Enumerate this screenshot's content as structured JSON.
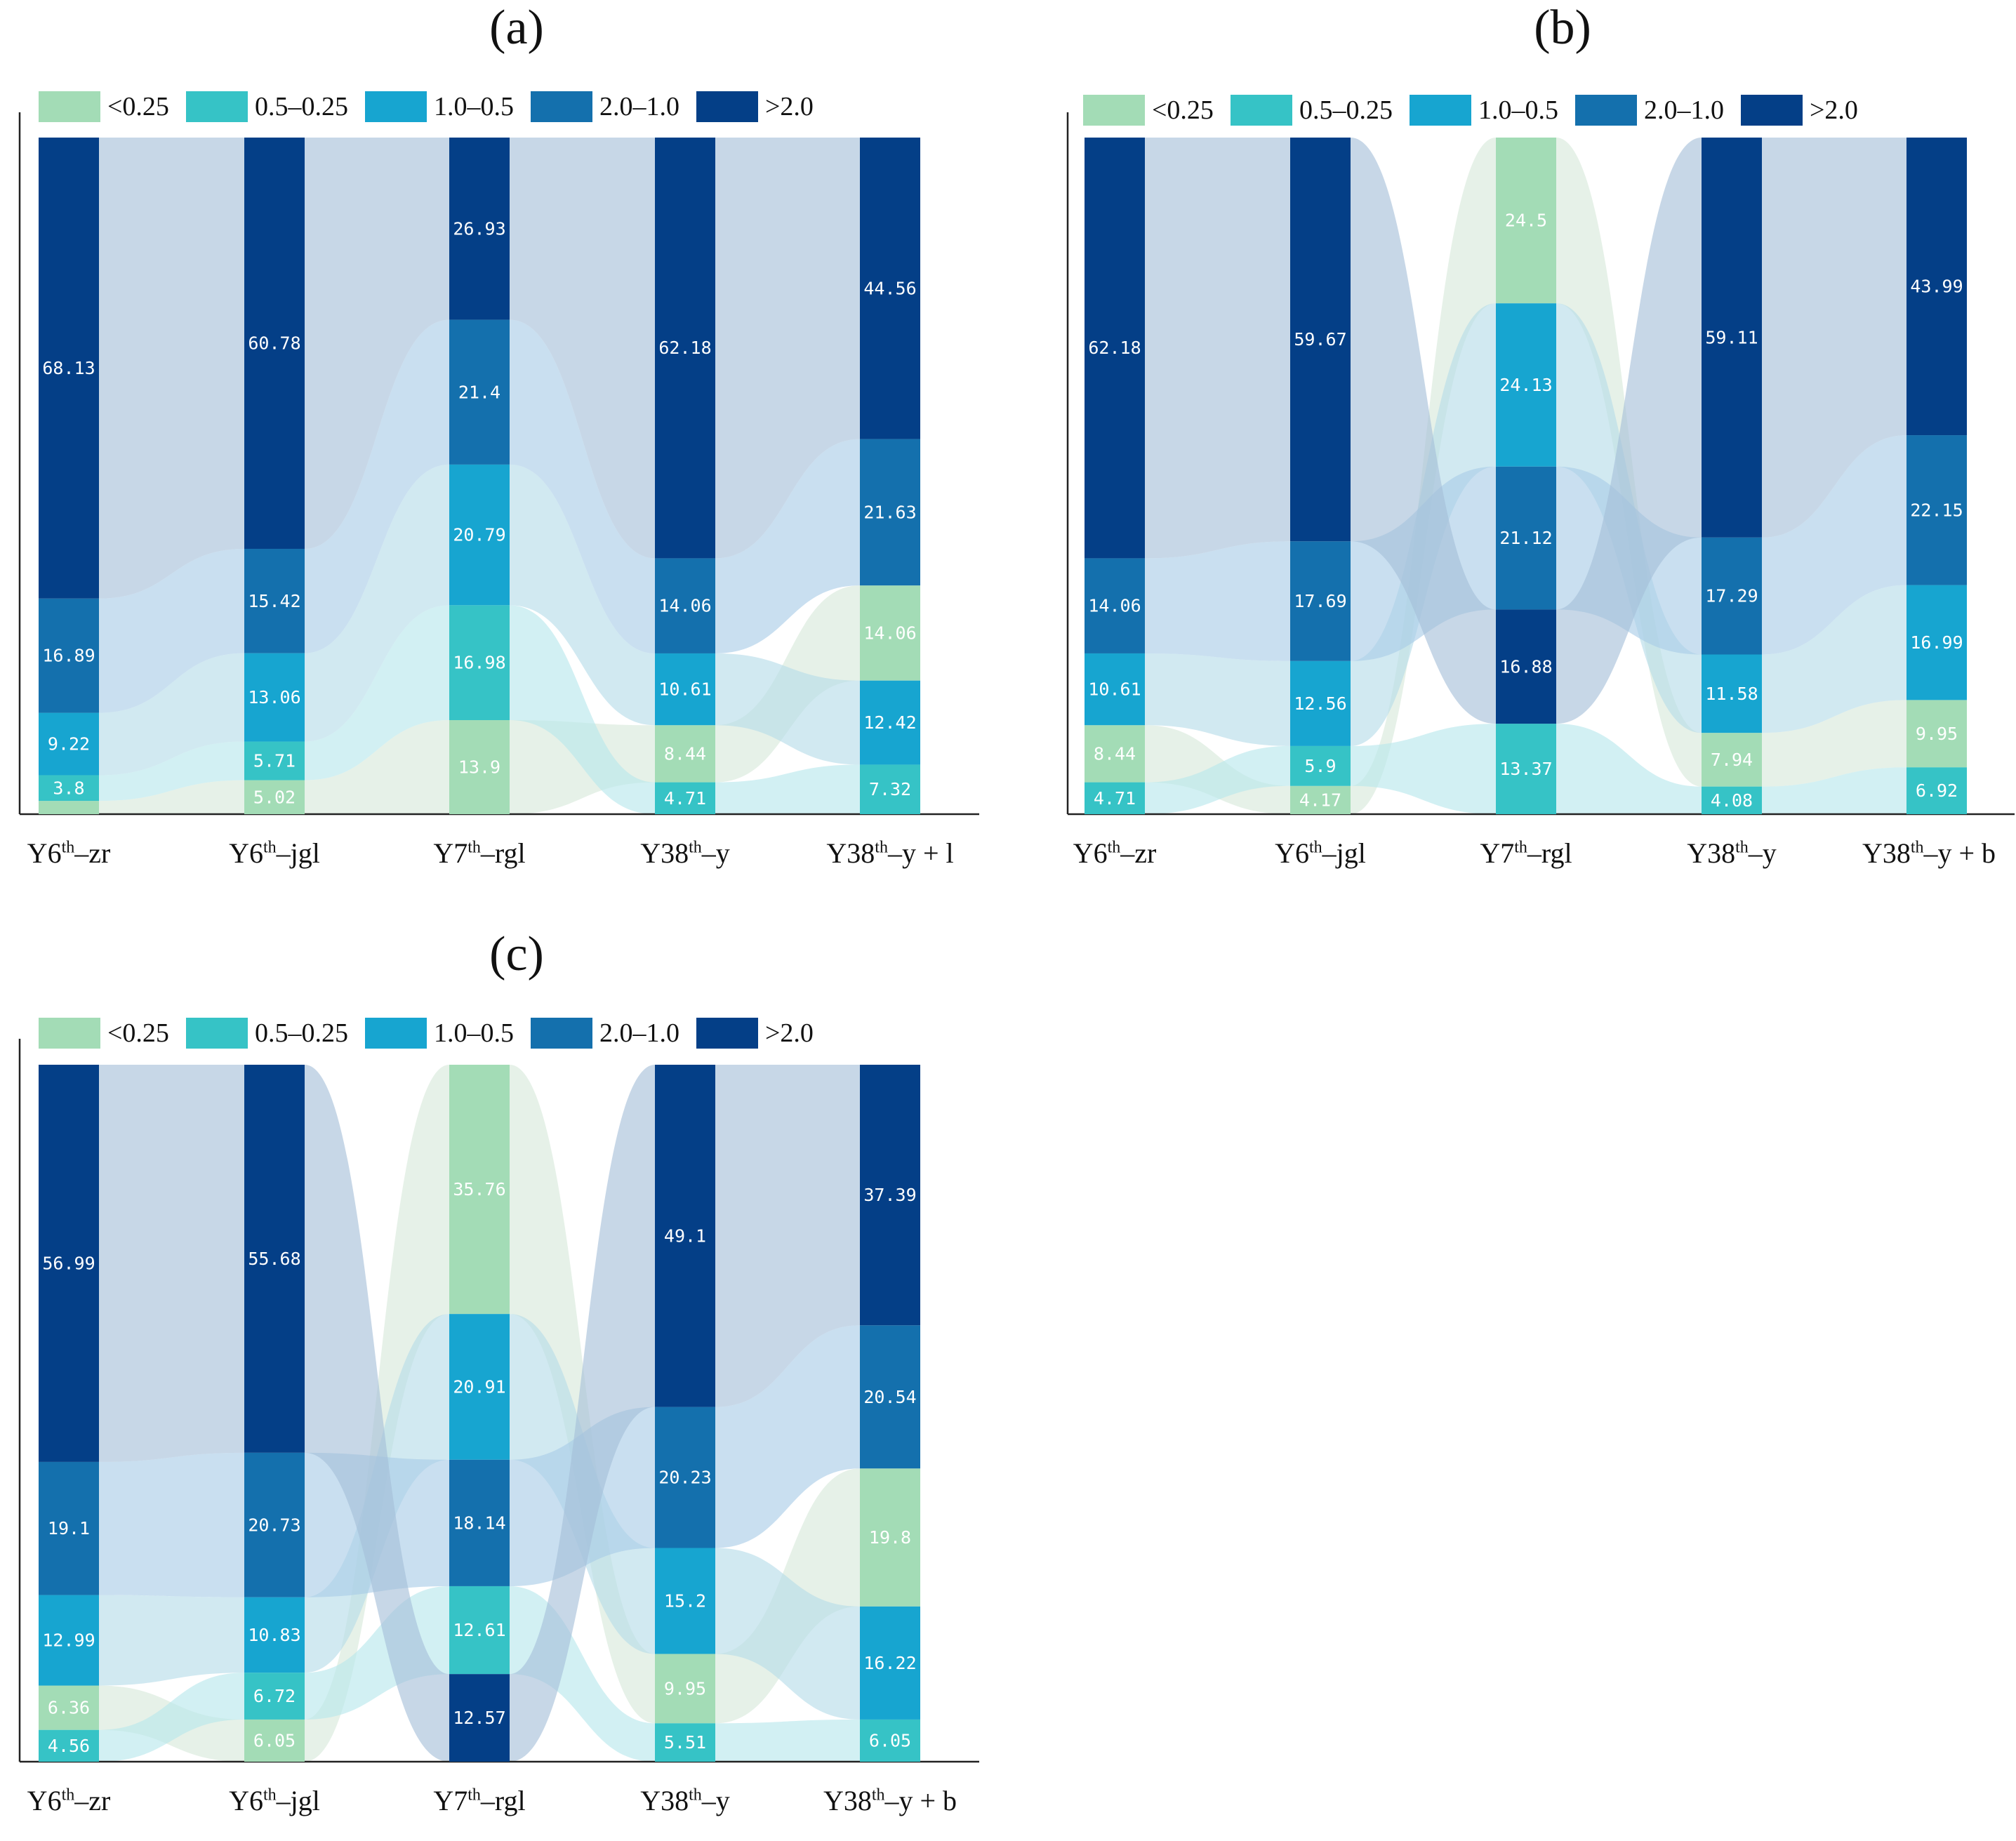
{
  "legend": {
    "categories": [
      "<0.25",
      "0.5–0.25",
      "1.0–0.5",
      "2.0–1.0",
      ">2.0"
    ],
    "colors": [
      "#a3dcb6",
      "#36c3c6",
      "#17a5d0",
      "#1470ad",
      "#043f87"
    ]
  },
  "chart_data": [
    {
      "type": "alluvial-stacked-bar",
      "panel": "(a)",
      "axis_labels": [
        {
          "base": "Y6",
          "sup": "th",
          "suffix": "–zr"
        },
        {
          "base": "Y6",
          "sup": "th",
          "suffix": "–jgl"
        },
        {
          "base": "Y7",
          "sup": "th",
          "suffix": "–rgl"
        },
        {
          "base": "Y38",
          "sup": "th",
          "suffix": "–y"
        },
        {
          "base": "Y38",
          "sup": "th",
          "suffix": "–y + l"
        }
      ],
      "stack_order_bottom_to_top": [
        [
          "<0.25",
          "0.5–0.25",
          "1.0–0.5",
          "2.0–1.0",
          ">2.0"
        ],
        [
          "<0.25",
          "0.5–0.25",
          "1.0–0.5",
          "2.0–1.0",
          ">2.0"
        ],
        [
          "<0.25",
          "0.5–0.25",
          "1.0–0.5",
          "2.0–1.0",
          ">2.0"
        ],
        [
          "0.5–0.25",
          "<0.25",
          "1.0–0.5",
          "2.0–1.0",
          ">2.0"
        ],
        [
          "0.5–0.25",
          "1.0–0.5",
          "<0.25",
          "2.0–1.0",
          ">2.0"
        ]
      ],
      "series": [
        {
          "name": "<0.25",
          "values": [
            1.96,
            5.02,
            13.9,
            8.44,
            14.06
          ]
        },
        {
          "name": "0.5–0.25",
          "values": [
            3.8,
            5.71,
            16.98,
            4.71,
            7.32
          ]
        },
        {
          "name": "1.0–0.5",
          "values": [
            9.22,
            13.06,
            20.79,
            10.61,
            12.42
          ]
        },
        {
          "name": "2.0–1.0",
          "values": [
            16.89,
            15.42,
            21.4,
            14.06,
            21.63
          ]
        },
        {
          "name": ">2.0",
          "values": [
            68.13,
            60.78,
            26.93,
            62.18,
            44.56
          ]
        }
      ],
      "data_labels": [
        [
          "",
          "3.8",
          "9.22",
          "16.89",
          "68.13"
        ],
        [
          "5.02",
          "5.71",
          "13.06",
          "15.42",
          "60.78"
        ],
        [
          "13.9",
          "16.98",
          "20.79",
          "21.4",
          "26.93"
        ],
        [
          "8.44",
          "4.71",
          "10.61",
          "14.06",
          "62.18"
        ],
        [
          "14.06",
          "7.32",
          "12.42",
          "21.63",
          "44.56"
        ]
      ]
    },
    {
      "type": "alluvial-stacked-bar",
      "panel": "(b)",
      "axis_labels": [
        {
          "base": "Y6",
          "sup": "th",
          "suffix": "–zr"
        },
        {
          "base": "Y6",
          "sup": "th",
          "suffix": "–jgl"
        },
        {
          "base": "Y7",
          "sup": "th",
          "suffix": "–rgl"
        },
        {
          "base": "Y38",
          "sup": "th",
          "suffix": "–y"
        },
        {
          "base": "Y38",
          "sup": "th",
          "suffix": "–y + b"
        }
      ],
      "stack_order_bottom_to_top": [
        [
          "0.5–0.25",
          "<0.25",
          "1.0–0.5",
          "2.0–1.0",
          ">2.0"
        ],
        [
          "<0.25",
          "0.5–0.25",
          "1.0–0.5",
          "2.0–1.0",
          ">2.0"
        ],
        [
          "0.5–0.25",
          ">2.0",
          "2.0–1.0",
          "1.0–0.5",
          "<0.25"
        ],
        [
          "0.5–0.25",
          "<0.25",
          "1.0–0.5",
          "2.0–1.0",
          ">2.0"
        ],
        [
          "0.5–0.25",
          "<0.25",
          "1.0–0.5",
          "2.0–1.0",
          ">2.0"
        ]
      ],
      "series": [
        {
          "name": "<0.25",
          "values": [
            8.44,
            4.17,
            24.5,
            7.94,
            9.95
          ]
        },
        {
          "name": "0.5–0.25",
          "values": [
            4.71,
            5.9,
            13.37,
            4.08,
            6.92
          ]
        },
        {
          "name": "1.0–0.5",
          "values": [
            10.61,
            12.56,
            24.13,
            11.58,
            16.99
          ]
        },
        {
          "name": "2.0–1.0",
          "values": [
            14.06,
            17.69,
            21.12,
            17.29,
            22.15
          ]
        },
        {
          "name": ">2.0",
          "values": [
            62.18,
            59.67,
            16.88,
            59.11,
            43.99
          ]
        }
      ],
      "data_labels": [
        [
          "8.44",
          "4.71",
          "10.61",
          "14.06",
          "62.18"
        ],
        [
          "4.17",
          "5.9",
          "12.56",
          "17.69",
          "59.67"
        ],
        [
          "24.5",
          "13.37",
          "24.13",
          "21.12",
          "16.88"
        ],
        [
          "7.94",
          "4.08",
          "11.58",
          "17.29",
          "59.11"
        ],
        [
          "9.95",
          "6.92",
          "16.99",
          "22.15",
          "43.99"
        ]
      ]
    },
    {
      "type": "alluvial-stacked-bar",
      "panel": "(c)",
      "axis_labels": [
        {
          "base": "Y6",
          "sup": "th",
          "suffix": "–zr"
        },
        {
          "base": "Y6",
          "sup": "th",
          "suffix": "–jgl"
        },
        {
          "base": "Y7",
          "sup": "th",
          "suffix": "–rgl"
        },
        {
          "base": "Y38",
          "sup": "th",
          "suffix": "–y"
        },
        {
          "base": "Y38",
          "sup": "th",
          "suffix": "–y + b"
        }
      ],
      "stack_order_bottom_to_top": [
        [
          "0.5–0.25",
          "<0.25",
          "1.0–0.5",
          "2.0–1.0",
          ">2.0"
        ],
        [
          "<0.25",
          "0.5–0.25",
          "1.0–0.5",
          "2.0–1.0",
          ">2.0"
        ],
        [
          ">2.0",
          "0.5–0.25",
          "2.0–1.0",
          "1.0–0.5",
          "<0.25"
        ],
        [
          "0.5–0.25",
          "<0.25",
          "1.0–0.5",
          "2.0–1.0",
          ">2.0"
        ],
        [
          "0.5–0.25",
          "1.0–0.5",
          "<0.25",
          "2.0–1.0",
          ">2.0"
        ]
      ],
      "series": [
        {
          "name": "<0.25",
          "values": [
            6.36,
            6.05,
            35.76,
            9.95,
            19.8
          ]
        },
        {
          "name": "0.5–0.25",
          "values": [
            4.56,
            6.72,
            12.61,
            5.51,
            6.05
          ]
        },
        {
          "name": "1.0–0.5",
          "values": [
            12.99,
            10.83,
            20.91,
            15.2,
            16.22
          ]
        },
        {
          "name": "2.0–1.0",
          "values": [
            19.1,
            20.73,
            18.14,
            20.23,
            20.54
          ]
        },
        {
          "name": ">2.0",
          "values": [
            56.99,
            55.68,
            12.57,
            49.1,
            37.39
          ]
        }
      ],
      "data_labels": [
        [
          "6.36",
          "4.56",
          "12.99",
          "19.1",
          "56.99"
        ],
        [
          "6.05",
          "6.72",
          "10.83",
          "20.73",
          "55.68"
        ],
        [
          "35.76",
          "12.61",
          "20.91",
          "18.14",
          "12.57"
        ],
        [
          "9.95",
          "5.51",
          "15.2",
          "20.23",
          "49.1"
        ],
        [
          "19.8",
          "6.05",
          "16.22",
          "20.54",
          "37.39"
        ]
      ]
    }
  ]
}
